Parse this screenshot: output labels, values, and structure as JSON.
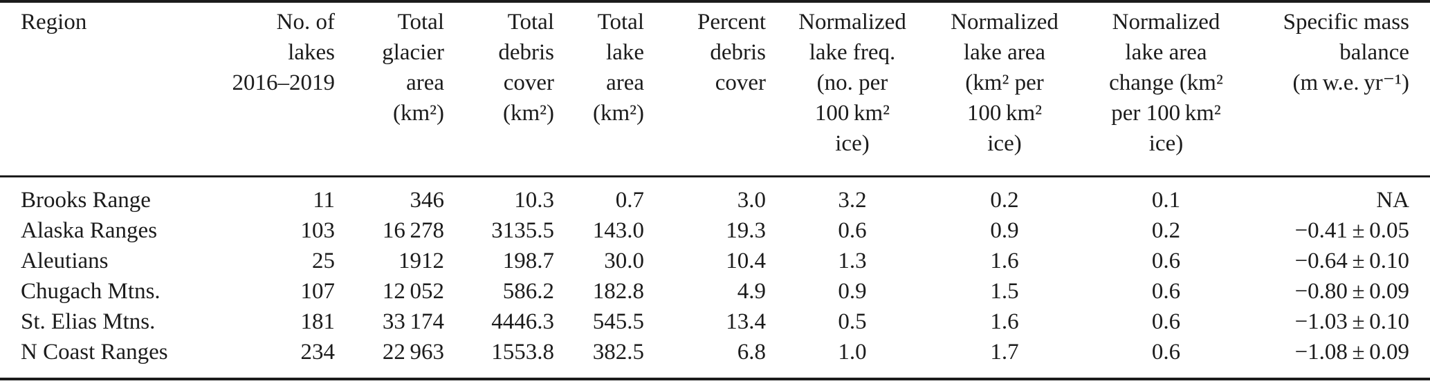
{
  "page": {
    "background_color": "#ffffff",
    "text_color": "#1b1b1b",
    "rule_color": "#1c1c1c"
  },
  "table": {
    "columns": [
      {
        "key": "region",
        "label": "Region",
        "align": "left"
      },
      {
        "key": "n_lakes",
        "label": "No. of\nlakes\n2016–2019",
        "align": "right"
      },
      {
        "key": "glacier_area",
        "label": "Total\nglacier\narea\n(km²)",
        "align": "right"
      },
      {
        "key": "debris_cover",
        "label": "Total\ndebris\ncover\n(km²)",
        "align": "right"
      },
      {
        "key": "lake_area",
        "label": "Total\nlake\narea\n(km²)",
        "align": "right"
      },
      {
        "key": "pct_debris",
        "label": "Percent\ndebris\ncover",
        "align": "right"
      },
      {
        "key": "norm_freq",
        "label": "Normalized\nlake freq.\n(no. per\n100 km²\nice)",
        "align": "center"
      },
      {
        "key": "norm_area",
        "label": "Normalized\nlake area\n(km² per\n100 km²\nice)",
        "align": "center"
      },
      {
        "key": "norm_change",
        "label": "Normalized\nlake area\nchange (km²\nper 100 km²\nice)",
        "align": "center"
      },
      {
        "key": "mass_balance",
        "label": "Specific mass\nbalance\n(m w.e. yr⁻¹)",
        "align": "right"
      }
    ],
    "rows": [
      {
        "region": "Brooks Range",
        "n_lakes": "11",
        "glacier_area": "346",
        "debris_cover": "10.3",
        "lake_area": "0.7",
        "pct_debris": "3.0",
        "norm_freq": "3.2",
        "norm_area": "0.2",
        "norm_change": "0.1",
        "mass_balance": "NA"
      },
      {
        "region": "Alaska Ranges",
        "n_lakes": "103",
        "glacier_area": "16 278",
        "debris_cover": "3135.5",
        "lake_area": "143.0",
        "pct_debris": "19.3",
        "norm_freq": "0.6",
        "norm_area": "0.9",
        "norm_change": "0.2",
        "mass_balance": "−0.41 ± 0.05"
      },
      {
        "region": "Aleutians",
        "n_lakes": "25",
        "glacier_area": "1912",
        "debris_cover": "198.7",
        "lake_area": "30.0",
        "pct_debris": "10.4",
        "norm_freq": "1.3",
        "norm_area": "1.6",
        "norm_change": "0.6",
        "mass_balance": "−0.64 ± 0.10"
      },
      {
        "region": "Chugach Mtns.",
        "n_lakes": "107",
        "glacier_area": "12 052",
        "debris_cover": "586.2",
        "lake_area": "182.8",
        "pct_debris": "4.9",
        "norm_freq": "0.9",
        "norm_area": "1.5",
        "norm_change": "0.6",
        "mass_balance": "−0.80 ± 0.09"
      },
      {
        "region": "St. Elias Mtns.",
        "n_lakes": "181",
        "glacier_area": "33 174",
        "debris_cover": "4446.3",
        "lake_area": "545.5",
        "pct_debris": "13.4",
        "norm_freq": "0.5",
        "norm_area": "1.6",
        "norm_change": "0.6",
        "mass_balance": "−1.03 ± 0.10"
      },
      {
        "region": "N Coast Ranges",
        "n_lakes": "234",
        "glacier_area": "22 963",
        "debris_cover": "1553.8",
        "lake_area": "382.5",
        "pct_debris": "6.8",
        "norm_freq": "1.0",
        "norm_area": "1.7",
        "norm_change": "0.6",
        "mass_balance": "−1.08 ± 0.09"
      }
    ]
  }
}
